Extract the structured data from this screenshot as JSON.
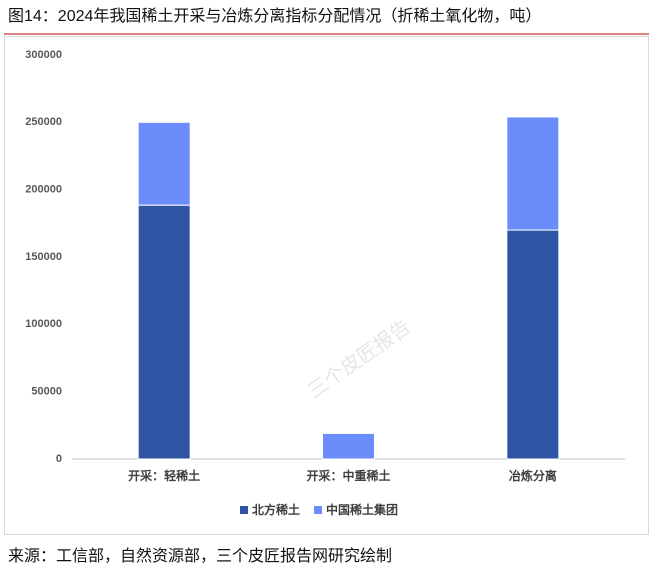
{
  "chart_data": {
    "type": "stacked-bar",
    "title": "图14：2024年我国稀土开采与冶炼分离指标分配情况（折稀土氧化物，吨）",
    "source": "来源：工信部，自然资源部，三个皮匠报告网研究绘制",
    "watermark": "三个皮匠报告",
    "categories": [
      "开采：轻稀土",
      "开采：中重稀土",
      "冶炼分离"
    ],
    "series": [
      {
        "name": "北方稀土",
        "color": "#2f54a3",
        "values": [
          188500,
          0,
          170000
        ]
      },
      {
        "name": "中国稀土集团",
        "color": "#6b8dfc",
        "values": [
          61500,
          19000,
          84000
        ]
      }
    ],
    "ylim": [
      0,
      300000
    ],
    "yticks": [
      0,
      50000,
      100000,
      150000,
      200000,
      250000,
      300000
    ],
    "grid": false
  }
}
